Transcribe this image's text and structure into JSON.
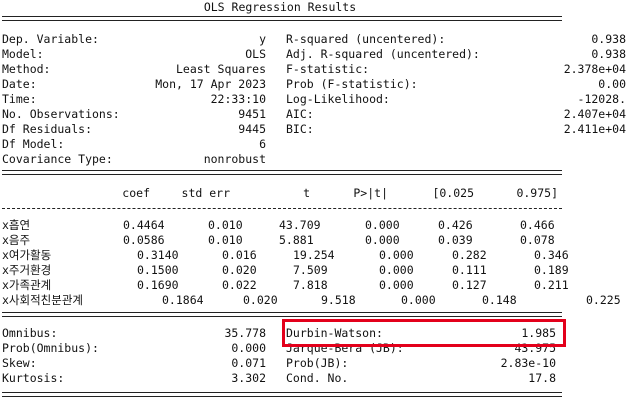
{
  "title": "OLS Regression Results",
  "header_left": [
    {
      "label": "Dep. Variable:",
      "value": "y"
    },
    {
      "label": "Model:",
      "value": "OLS"
    },
    {
      "label": "Method:",
      "value": "Least Squares"
    },
    {
      "label": "Date:",
      "value": "Mon, 17 Apr 2023"
    },
    {
      "label": "Time:",
      "value": "22:33:10"
    },
    {
      "label": "No. Observations:",
      "value": "9451"
    },
    {
      "label": "Df Residuals:",
      "value": "9445"
    },
    {
      "label": "Df Model:",
      "value": "6"
    },
    {
      "label": "Covariance Type:",
      "value": "nonrobust"
    }
  ],
  "header_right": [
    {
      "label": "R-squared (uncentered):",
      "value": "0.938"
    },
    {
      "label": "Adj. R-squared (uncentered):",
      "value": "0.938"
    },
    {
      "label": "F-statistic:",
      "value": "2.378e+04"
    },
    {
      "label": "Prob (F-statistic):",
      "value": "0.00"
    },
    {
      "label": "Log-Likelihood:",
      "value": "-12028."
    },
    {
      "label": "AIC:",
      "value": "2.407e+04"
    },
    {
      "label": "BIC:",
      "value": "2.411e+04"
    }
  ],
  "coef_headers": [
    "coef",
    "std err",
    "t",
    "P>|t|",
    "[0.025",
    "0.975]"
  ],
  "coef_rows": [
    {
      "name": "x흡연",
      "values": [
        "0.4464",
        "0.010",
        "43.709",
        "0.000",
        "0.426",
        "0.466"
      ]
    },
    {
      "name": "x음주",
      "values": [
        "0.0586",
        "0.010",
        "5.881",
        "0.000",
        "0.039",
        "0.078"
      ]
    },
    {
      "name": "x여가활동",
      "values": [
        "0.3140",
        "0.016",
        "19.254",
        "0.000",
        "0.282",
        "0.346"
      ]
    },
    {
      "name": "x주거환경",
      "values": [
        "0.1500",
        "0.020",
        "7.509",
        "0.000",
        "0.111",
        "0.189"
      ]
    },
    {
      "name": "x가족관계",
      "values": [
        "0.1690",
        "0.022",
        "7.818",
        "0.000",
        "0.127",
        "0.211"
      ]
    },
    {
      "name": "x사회적친분관계",
      "values": [
        "0.1864",
        "0.020",
        "9.518",
        "0.000",
        "0.148",
        "0.225"
      ]
    }
  ],
  "diag_left": [
    {
      "label": "Omnibus:",
      "value": "35.778"
    },
    {
      "label": "Prob(Omnibus):",
      "value": "0.000"
    },
    {
      "label": "Skew:",
      "value": "0.071"
    },
    {
      "label": "Kurtosis:",
      "value": "3.302"
    }
  ],
  "diag_right": [
    {
      "label": "Durbin-Watson:",
      "value": "1.985"
    },
    {
      "label": "Jarque-Bera (JB):",
      "value": "43.975"
    },
    {
      "label": "Prob(JB):",
      "value": "2.83e-10"
    },
    {
      "label": "Cond. No.",
      "value": "17.8"
    }
  ],
  "highlight_color": "#e3001b"
}
